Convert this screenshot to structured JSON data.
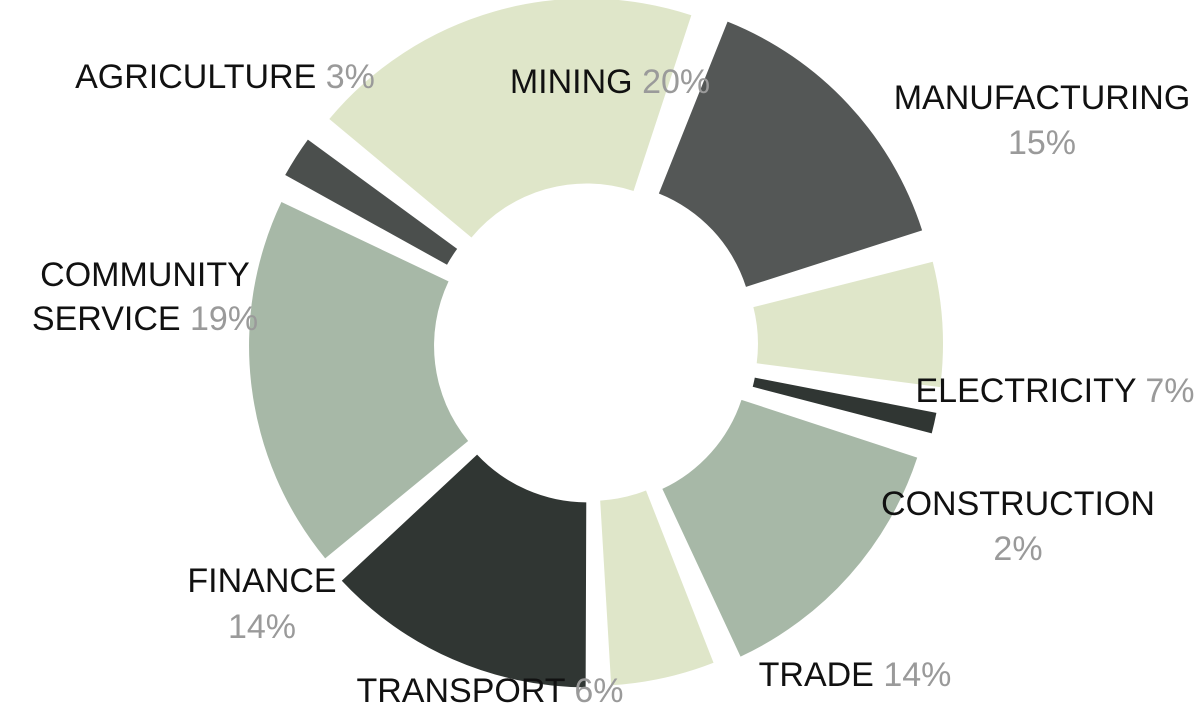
{
  "chart_data": {
    "type": "pie",
    "title": "",
    "slices": [
      {
        "name": "MINING",
        "pct_label": "20%",
        "value": 20,
        "color": "#dfe6c9"
      },
      {
        "name": "MANUFACTURING",
        "pct_label": "15%",
        "value": 15,
        "color": "#545756"
      },
      {
        "name": "ELECTRICITY",
        "pct_label": "7%",
        "value": 7,
        "color": "#dfe6c9"
      },
      {
        "name": "CONSTRUCTION",
        "pct_label": "2%",
        "value": 2,
        "color": "#303633"
      },
      {
        "name": "TRADE",
        "pct_label": "14%",
        "value": 14,
        "color": "#a7b8a7"
      },
      {
        "name": "TRANSPORT",
        "pct_label": "6%",
        "value": 6,
        "color": "#dfe6c9"
      },
      {
        "name": "FINANCE",
        "pct_label": "14%",
        "value": 14,
        "color": "#303633"
      },
      {
        "name": "COMMUNITY SERVICE",
        "pct_label": "19%",
        "value": 19,
        "color": "#a7b8a7"
      },
      {
        "name": "AGRICULTURE",
        "pct_label": "3%",
        "value": 3,
        "color": "#4b4f4d"
      }
    ]
  }
}
